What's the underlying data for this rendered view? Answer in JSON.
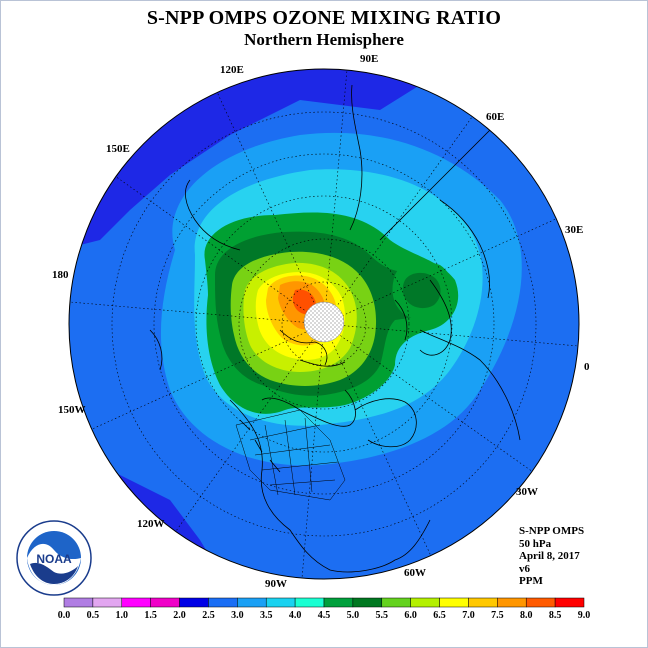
{
  "title": "S-NPP OMPS OZONE MIXING RATIO",
  "subtitle": "Northern Hemisphere",
  "longitude_labels": [
    "90E",
    "60E",
    "30E",
    "0",
    "30W",
    "60W",
    "90W",
    "120W",
    "150W",
    "180",
    "150E",
    "120E"
  ],
  "info": {
    "instrument": "S-NPP OMPS",
    "level": "50 hPa",
    "date": "April 8, 2017",
    "version": "v6",
    "units": "PPM"
  },
  "logo": {
    "text": "NOAA"
  },
  "colorbar": {
    "ticks": [
      "0.0",
      "0.5",
      "1.0",
      "1.5",
      "2.0",
      "2.5",
      "3.0",
      "3.5",
      "4.0",
      "4.5",
      "5.0",
      "5.5",
      "6.0",
      "6.5",
      "7.0",
      "7.5",
      "8.0",
      "8.5",
      "9.0"
    ],
    "colors": [
      "#b07de3",
      "#e2a6f0",
      "#ff00ff",
      "#f000c8",
      "#0000e6",
      "#1a6ef5",
      "#1aa0f5",
      "#1ad2f0",
      "#1affd2",
      "#00a03c",
      "#007820",
      "#64d21e",
      "#b4f000",
      "#ffff00",
      "#ffc800",
      "#ff9600",
      "#ff5a00",
      "#ff0000",
      "#a05a32"
    ]
  },
  "colors": {
    "c20": "#1e28e6",
    "c25": "#1c6ef2",
    "c30": "#1aa0f5",
    "c35": "#28d2f0",
    "c40": "#00a032",
    "c45": "#007828",
    "c50": "#78d214",
    "c55": "#c8f000",
    "c60": "#ffff00",
    "c65": "#ffc800",
    "c70": "#ff9600",
    "c75": "#ff5000"
  }
}
